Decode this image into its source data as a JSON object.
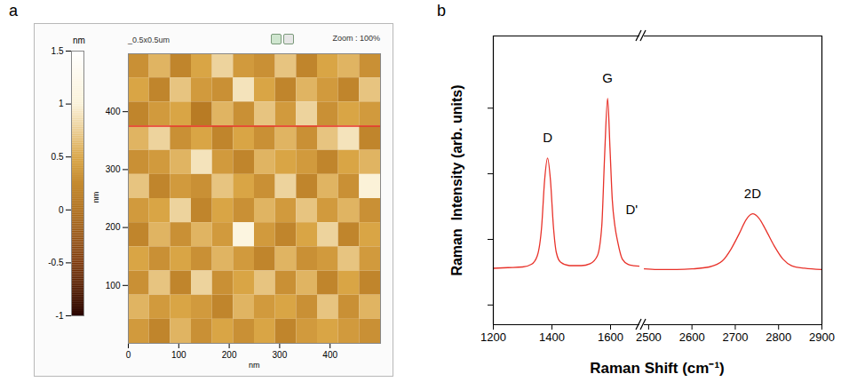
{
  "chart_data": [
    {
      "type": "heatmap",
      "panel_label": "a",
      "header_left": "_0.5x0.5um",
      "header_right": "Zoom : 100%",
      "xlabel": "nm",
      "ylabel": "nm",
      "xlim": [
        0,
        500
      ],
      "ylim": [
        0,
        500
      ],
      "xticks": [
        0,
        100,
        200,
        300,
        400
      ],
      "yticks": [
        100,
        200,
        300,
        400
      ],
      "z": [
        [
          0.3,
          0.6,
          0.2,
          0.5,
          0.8,
          0.4,
          0.3,
          0.7,
          0.2,
          0.5,
          0.6,
          0.3
        ],
        [
          0.5,
          0.2,
          0.7,
          0.4,
          0.3,
          0.9,
          0.5,
          0.2,
          0.6,
          0.4,
          0.2,
          0.7
        ],
        [
          0.2,
          0.4,
          0.5,
          0.1,
          0.6,
          0.3,
          0.7,
          0.4,
          0.8,
          0.3,
          0.5,
          0.4
        ],
        [
          0.6,
          0.8,
          0.3,
          0.5,
          0.2,
          0.5,
          0.3,
          0.6,
          0.3,
          0.7,
          0.9,
          0.2
        ],
        [
          0.3,
          0.4,
          0.6,
          0.9,
          0.4,
          0.2,
          0.6,
          0.5,
          0.4,
          0.2,
          0.5,
          0.6
        ],
        [
          0.7,
          0.2,
          0.4,
          0.3,
          0.7,
          0.5,
          0.3,
          0.8,
          0.2,
          0.6,
          0.3,
          1.0
        ],
        [
          0.4,
          0.5,
          0.8,
          0.2,
          0.5,
          0.3,
          0.6,
          0.4,
          0.7,
          0.4,
          0.6,
          0.3
        ],
        [
          0.2,
          0.6,
          0.3,
          0.6,
          0.4,
          1.1,
          0.4,
          0.2,
          0.5,
          0.8,
          0.2,
          0.5
        ],
        [
          0.5,
          0.3,
          0.5,
          0.3,
          0.6,
          0.4,
          0.2,
          0.6,
          0.3,
          0.4,
          0.7,
          0.4
        ],
        [
          0.3,
          0.7,
          0.2,
          0.8,
          0.3,
          0.5,
          0.7,
          0.3,
          0.6,
          0.2,
          0.5,
          0.2
        ],
        [
          0.6,
          0.4,
          0.5,
          0.4,
          0.2,
          0.6,
          0.4,
          0.5,
          0.3,
          0.7,
          0.3,
          0.6
        ],
        [
          0.4,
          0.2,
          0.6,
          0.3,
          0.5,
          0.3,
          0.5,
          0.2,
          0.4,
          0.5,
          0.4,
          0.3
        ]
      ],
      "colorbar": {
        "label": "nm",
        "range": [
          -1,
          1.5
        ],
        "ticks": [
          -1,
          -0.5,
          0,
          0.5,
          1,
          1.5
        ]
      },
      "profile_line": {
        "y": 375,
        "color": "#e8322a"
      }
    },
    {
      "type": "line",
      "panel_label": "b",
      "xlabel": "Raman Shift (cm⁻¹)",
      "ylabel": "Raman  Intensity (arb. units)",
      "xlim": [
        1200,
        2900
      ],
      "axis_break": [
        1700,
        2490
      ],
      "xticks": [
        1200,
        1400,
        1600,
        2500,
        2600,
        2700,
        2800,
        2900
      ],
      "ylim": [
        0,
        4.4
      ],
      "yticks": [
        0.3,
        1.3,
        2.3,
        3.3
      ],
      "tick_labels": "x",
      "color": "#e8322a",
      "x": [
        1200,
        1250,
        1300,
        1330,
        1350,
        1365,
        1375,
        1385,
        1395,
        1405,
        1415,
        1430,
        1460,
        1500,
        1530,
        1555,
        1570,
        1580,
        1590,
        1598,
        1606,
        1615,
        1625,
        1640,
        1660,
        1680,
        1700,
        2490,
        2520,
        2560,
        2600,
        2640,
        2670,
        2690,
        2710,
        2725,
        2740,
        2755,
        2770,
        2790,
        2810,
        2830,
        2860,
        2900
      ],
      "values": [
        0.86,
        0.87,
        0.88,
        0.92,
        1.05,
        1.5,
        2.2,
        2.54,
        2.2,
        1.5,
        1.1,
        0.95,
        0.9,
        0.9,
        0.93,
        1.05,
        1.5,
        2.6,
        3.45,
        2.7,
        1.9,
        1.5,
        1.25,
        1.0,
        0.92,
        0.9,
        0.89,
        0.85,
        0.84,
        0.84,
        0.85,
        0.88,
        0.97,
        1.15,
        1.4,
        1.6,
        1.69,
        1.62,
        1.45,
        1.2,
        1.0,
        0.9,
        0.86,
        0.84
      ],
      "annotations": [
        {
          "text": "D",
          "x": 1385,
          "y": 2.85
        },
        {
          "text": "G",
          "x": 1590,
          "y": 3.75
        },
        {
          "text": "D'",
          "x": 1672,
          "y": 1.75
        },
        {
          "text": "2D",
          "x": 2740,
          "y": 2.0
        }
      ]
    }
  ]
}
